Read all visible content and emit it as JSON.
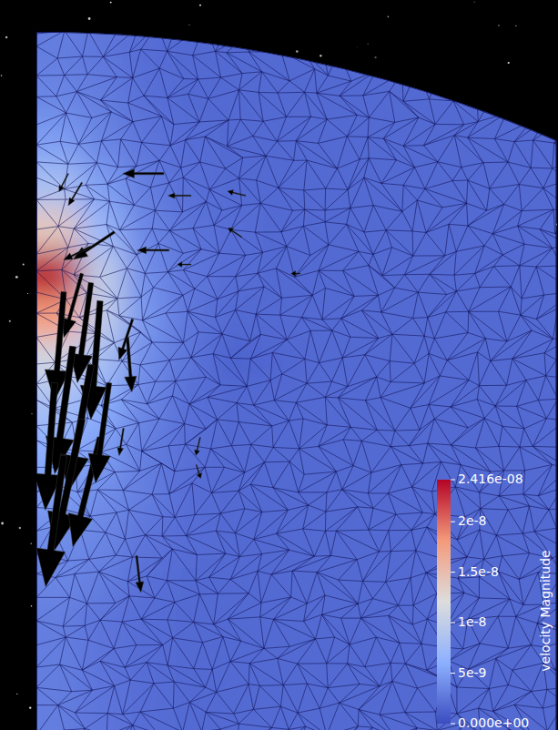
{
  "chart_data": {
    "type": "heatmap",
    "xlim": [
      0,
      0.4
    ],
    "ylim": [
      0.46,
      1.0
    ],
    "tick_labels": false,
    "cells": [
      [
        3e-09,
        2.6e-09,
        2e-09,
        1.8e-09,
        1.8e-09,
        1.8e-09,
        1.8e-09,
        1.8e-09,
        1.8e-09,
        1.8e-09,
        1.8e-09,
        1.8e-09
      ],
      [
        3.5e-09,
        3e-09,
        2.2e-09,
        1.8e-09,
        1.8e-09,
        1.8e-09,
        1.8e-09,
        1.8e-09,
        1.8e-09,
        1.8e-09,
        1.8e-09,
        1.8e-09
      ],
      [
        5e-09,
        3.5e-09,
        2.5e-09,
        2e-09,
        1.8e-09,
        1.8e-09,
        1.8e-09,
        1.8e-09,
        1.8e-09,
        1.8e-09,
        1.8e-09,
        1.8e-09
      ],
      [
        8e-09,
        5e-09,
        3e-09,
        2.2e-09,
        1.8e-09,
        1.8e-09,
        1.8e-09,
        1.8e-09,
        1.8e-09,
        1.8e-09,
        1.8e-09,
        1.8e-09
      ],
      [
        1.4e-08,
        7e-09,
        3.5e-09,
        2.4e-09,
        2e-09,
        1.8e-09,
        1.8e-09,
        1.8e-09,
        1.8e-09,
        1.8e-09,
        1.8e-09,
        1.8e-09
      ],
      [
        2.416e-08,
        1e-08,
        4e-09,
        2.6e-09,
        2e-09,
        1.8e-09,
        1.8e-09,
        1.8e-09,
        1.8e-09,
        1.8e-09,
        1.8e-09,
        1.8e-09
      ],
      [
        1.8e-08,
        1e-08,
        4.5e-09,
        2.6e-09,
        1.8e-09,
        1.8e-09,
        1.8e-09,
        1.8e-09,
        1.8e-09,
        1.8e-09,
        1.8e-09,
        1.8e-09
      ],
      [
        1.1e-08,
        8e-09,
        4e-09,
        2.4e-09,
        1.4e-09,
        1.6e-09,
        1.8e-09,
        1.8e-09,
        1.8e-09,
        1.8e-09,
        1.8e-09,
        1.8e-09
      ],
      [
        8e-09,
        6e-09,
        3.5e-09,
        2.2e-09,
        1.8e-09,
        1.8e-09,
        1.8e-09,
        1.8e-09,
        1.8e-09,
        1.8e-09,
        1.8e-09,
        1.8e-09
      ],
      [
        6e-09,
        5e-09,
        3e-09,
        2.2e-09,
        1.8e-09,
        1.8e-09,
        1.8e-09,
        1.8e-09,
        1.8e-09,
        1.8e-09,
        1.8e-09,
        1.8e-09
      ],
      [
        5e-09,
        4e-09,
        3e-09,
        2e-09,
        1.8e-09,
        1.8e-09,
        1.8e-09,
        1.8e-09,
        1.8e-09,
        1.8e-09,
        1.8e-09,
        1.8e-09
      ],
      [
        4e-09,
        3.5e-09,
        2.5e-09,
        2e-09,
        1.8e-09,
        1.8e-09,
        1.8e-09,
        1.8e-09,
        1.8e-09,
        1.8e-09,
        1.8e-09,
        1.8e-09
      ],
      [
        3.5e-09,
        3e-09,
        2.2e-09,
        1.8e-09,
        1.8e-09,
        1.8e-09,
        1.8e-09,
        1.8e-09,
        1.8e-09,
        1.8e-09,
        1.8e-09,
        1.8e-09
      ],
      [
        3e-09,
        2.5e-09,
        2e-09,
        1.8e-09,
        1.8e-09,
        1.8e-09,
        1.8e-09,
        1.8e-09,
        1.8e-09,
        1.8e-09,
        1.8e-09,
        1.8e-09
      ],
      [
        3e-09,
        2.5e-09,
        2e-09,
        1.8e-09,
        1.8e-09,
        1.8e-09,
        1.8e-09,
        1.8e-09,
        1.8e-09,
        1.8e-09,
        1.8e-09,
        1.8e-09
      ],
      [
        3e-09,
        2.5e-09,
        2e-09,
        1.8e-09,
        1.8e-09,
        1.8e-09,
        1.8e-09,
        1.8e-09,
        1.8e-09,
        1.8e-09,
        1.8e-09,
        1.8e-09
      ]
    ],
    "colorbar": {
      "title": "velocity Magnitude",
      "range": [
        0,
        2.416e-08
      ],
      "ticks": [
        {
          "value": 0,
          "label": "0.000e+00"
        },
        {
          "value": 5e-09,
          "label": "5e-9"
        },
        {
          "value": 1e-08,
          "label": "1e-8"
        },
        {
          "value": 1.5e-08,
          "label": "1.5e-8"
        },
        {
          "value": 2e-08,
          "label": "2e-8"
        },
        {
          "value": 2.416e-08,
          "label": "2.416e-08"
        }
      ]
    },
    "glyphs": {
      "x": [
        0.035,
        0.042,
        0.021,
        0.049,
        0.028,
        0.042,
        0.014,
        0.035,
        0.049,
        0.021,
        0.056,
        0.07,
        0.06,
        0.102,
        0.119,
        0.098,
        0.035,
        0.074,
        0.161,
        0.158,
        0.119,
        0.067,
        0.077,
        0.123,
        0.042,
        0.0245,
        0.203,
        0.126
      ],
      "y": [
        0.814,
        0.807,
        0.8,
        0.793,
        0.758,
        0.744,
        0.73,
        0.702,
        0.688,
        0.674,
        0.73,
        0.765,
        0.846,
        0.832,
        0.874,
        0.891,
        0.884,
        0.779,
        0.874,
        0.842,
        0.821,
        0.695,
        0.597,
        0.667,
        0.835,
        0.891,
        0.814,
        0.688
      ],
      "u": [
        -3.3e-09,
        -2.5e-09,
        -1.7e-09,
        -1.7e-09,
        -3.3e-09,
        -4.2e-09,
        -1.7e-09,
        -5e-09,
        -5e-09,
        -3.3e-09,
        -2.5e-09,
        8e-10,
        -7.5e-09,
        -5.8e-09,
        -4.2e-09,
        -7.5e-09,
        -2.5e-09,
        -2.5e-09,
        -3.3e-09,
        -2.5e-09,
        -2.5e-09,
        -8e-10,
        8e-10,
        8e-10,
        -5e-09,
        -1.7e-09,
        -1.7e-09,
        -8e-10
      ],
      "v": [
        -1.17e-08,
        -1.83e-08,
        -2e-08,
        -2.17e-08,
        -2.33e-08,
        -2.33e-08,
        -2.33e-08,
        -2.4e-08,
        -2e-08,
        -2.4e-08,
        -1.83e-08,
        -1e-08,
        -5e-09,
        0,
        0,
        0,
        -4.2e-09,
        -7.5e-09,
        8e-10,
        1.7e-09,
        0,
        -5e-09,
        -6.7e-09,
        -2.5e-09,
        -2.5e-09,
        -3.3e-09,
        0,
        -3.3e-09
      ]
    }
  }
}
